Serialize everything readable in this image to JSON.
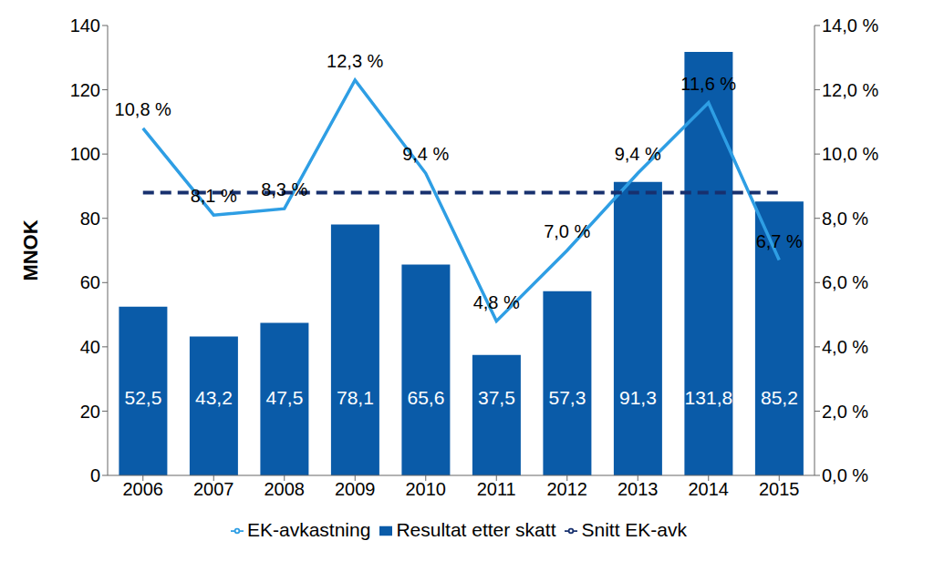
{
  "chart_data": {
    "type": "bar",
    "categories": [
      "2006",
      "2007",
      "2008",
      "2009",
      "2010",
      "2011",
      "2012",
      "2013",
      "2014",
      "2015"
    ],
    "y_label": "MNOK",
    "ylim": [
      0,
      140
    ],
    "yticks": [
      0,
      20,
      40,
      60,
      80,
      100,
      120,
      140
    ],
    "y2lim": [
      0,
      14
    ],
    "y2ticks": [
      {
        "value": 0,
        "label": "0,0 %"
      },
      {
        "value": 2,
        "label": "2,0 %"
      },
      {
        "value": 4,
        "label": "4,0 %"
      },
      {
        "value": 6,
        "label": "6,0 %"
      },
      {
        "value": 8,
        "label": "8,0 %"
      },
      {
        "value": 10,
        "label": "10,0 %"
      },
      {
        "value": 12,
        "label": "12,0 %"
      },
      {
        "value": 14,
        "label": "14,0 %"
      }
    ],
    "grid": false,
    "legend": "bottom",
    "series": [
      {
        "name": "Resultat etter skatt",
        "type": "bar",
        "color": "#0a5ba8",
        "values": [
          52.5,
          43.2,
          47.5,
          78.1,
          65.6,
          37.5,
          57.3,
          91.3,
          131.8,
          85.2
        ],
        "value_labels": [
          "52,5",
          "43,2",
          "47,5",
          "78,1",
          "65,6",
          "37,5",
          "57,3",
          "91,3",
          "131,8",
          "85,2"
        ],
        "data_labels": true
      },
      {
        "name": "EK-avkastning",
        "type": "line",
        "axis": "y2",
        "color": "#2e9ee4",
        "values": [
          10.8,
          8.1,
          8.3,
          12.3,
          9.4,
          4.8,
          7.0,
          9.4,
          11.6,
          6.7
        ],
        "value_labels": [
          "10,8 %",
          "8,1 %",
          "8,3 %",
          "12,3 %",
          "9,4 %",
          "4,8 %",
          "7,0 %",
          "9,4 %",
          "11,6 %",
          "6,7 %"
        ],
        "data_labels": true
      },
      {
        "name": "Snitt EK-avk",
        "type": "line",
        "axis": "y2",
        "color": "#17306e",
        "line_style": "dashed",
        "values": [
          8.8,
          8.8,
          8.8,
          8.8,
          8.8,
          8.8,
          8.8,
          8.8,
          8.8,
          8.8
        ],
        "data_labels": false
      }
    ]
  }
}
